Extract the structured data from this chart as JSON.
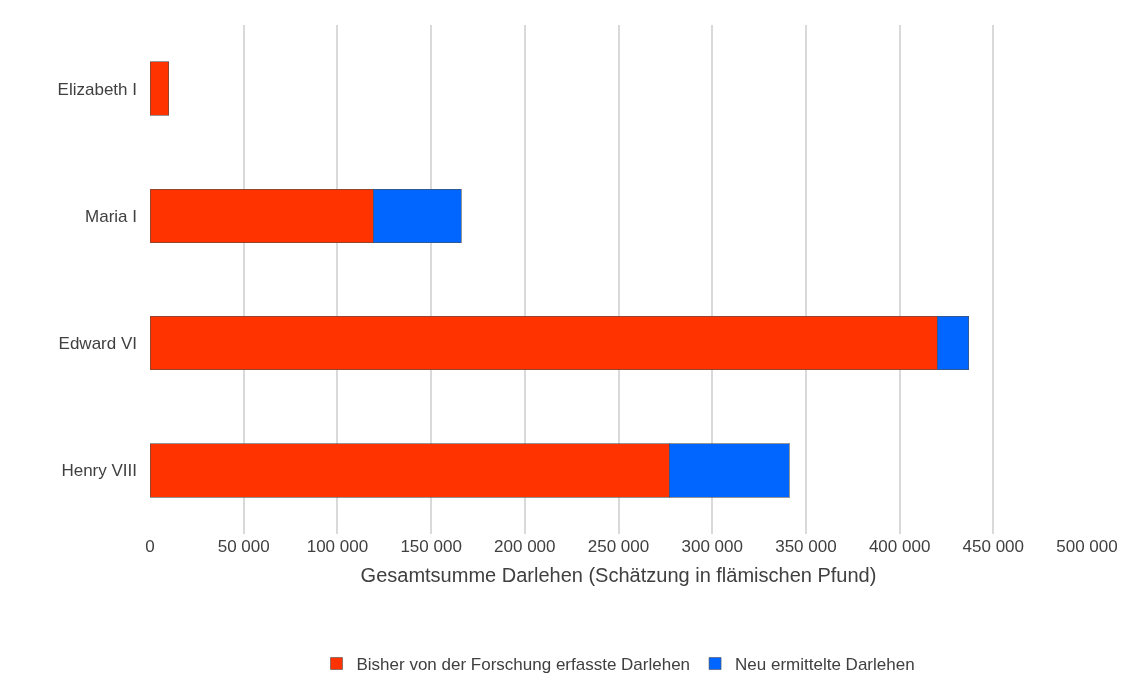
{
  "chart_data": {
    "type": "bar",
    "orientation": "horizontal",
    "stacked": true,
    "categories": [
      "Elizabeth I",
      "Maria I",
      "Edward VI",
      "Henry VIII"
    ],
    "series": [
      {
        "name": "Bisher von der Forschung erfasste Darlehen",
        "color": "#ff3300",
        "values": [
          10000,
          119000,
          420000,
          277000
        ]
      },
      {
        "name": "Neu ermittelte Darlehen",
        "color": "#0066ff",
        "values": [
          null,
          47000,
          17000,
          64000
        ]
      }
    ],
    "xlabel": "Gesamtsumme Darlehen (Schätzung in flämischen Pfund)",
    "xlim": [
      0,
      500000
    ],
    "xticks": [
      {
        "value": 0,
        "label": "0"
      },
      {
        "value": 50000,
        "label": "50 000"
      },
      {
        "value": 100000,
        "label": "100 000"
      },
      {
        "value": 150000,
        "label": "150 000"
      },
      {
        "value": 200000,
        "label": "200 000"
      },
      {
        "value": 250000,
        "label": "250 000"
      },
      {
        "value": 300000,
        "label": "300 000"
      },
      {
        "value": 350000,
        "label": "350 000"
      },
      {
        "value": 400000,
        "label": "400 000"
      },
      {
        "value": 450000,
        "label": "450 000"
      },
      {
        "value": 500000,
        "label": "500 000"
      }
    ],
    "grid": "x",
    "legend": "bottom"
  }
}
